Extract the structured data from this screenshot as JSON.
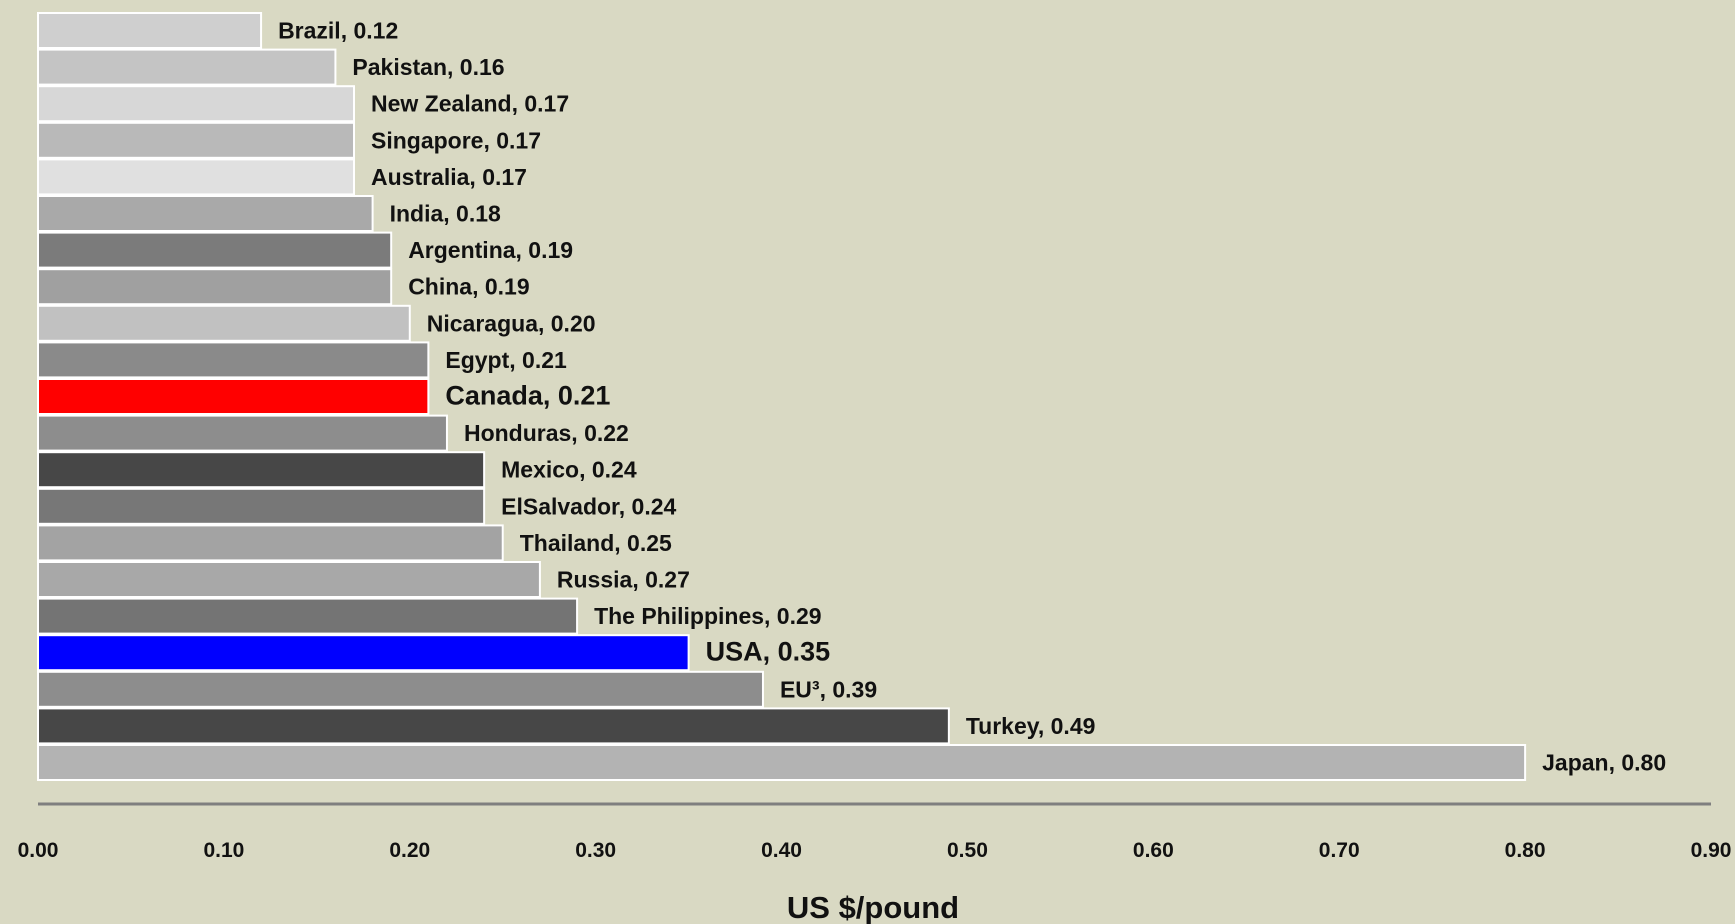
{
  "chart_data": {
    "type": "bar",
    "orientation": "horizontal",
    "title": "",
    "xlabel": "US $/pound",
    "ylabel": "",
    "xlim": [
      0,
      0.9
    ],
    "xticks": [
      "0.00",
      "0.10",
      "0.20",
      "0.30",
      "0.40",
      "0.50",
      "0.60",
      "0.70",
      "0.80",
      "0.90"
    ],
    "grid": false,
    "legend": "none",
    "bars": [
      {
        "category": "Brazil",
        "value": 0.12,
        "label": "Brazil, 0.12",
        "color": "#cfcfcf",
        "highlight": false
      },
      {
        "category": "Pakistan",
        "value": 0.16,
        "label": "Pakistan, 0.16",
        "color": "#c4c4c4",
        "highlight": false
      },
      {
        "category": "New Zealand",
        "value": 0.17,
        "label": "New Zealand, 0.17",
        "color": "#d7d7d7",
        "highlight": false
      },
      {
        "category": "Singapore",
        "value": 0.17,
        "label": "Singapore, 0.17",
        "color": "#b9b9b9",
        "highlight": false
      },
      {
        "category": "Australia",
        "value": 0.17,
        "label": "Australia, 0.17",
        "color": "#e0e0e0",
        "highlight": false
      },
      {
        "category": "India",
        "value": 0.18,
        "label": "India, 0.18",
        "color": "#a9a9a9",
        "highlight": false
      },
      {
        "category": "Argentina",
        "value": 0.19,
        "label": "Argentina, 0.19",
        "color": "#7b7b7b",
        "highlight": false
      },
      {
        "category": "China",
        "value": 0.19,
        "label": "China, 0.19",
        "color": "#a0a0a0",
        "highlight": false
      },
      {
        "category": "Nicaragua",
        "value": 0.2,
        "label": "Nicaragua, 0.20",
        "color": "#c1c1c1",
        "highlight": false
      },
      {
        "category": "Egypt",
        "value": 0.21,
        "label": "Egypt, 0.21",
        "color": "#8a8a8a",
        "highlight": false
      },
      {
        "category": "Canada",
        "value": 0.21,
        "label": "Canada, 0.21",
        "color": "#ff0000",
        "highlight": true
      },
      {
        "category": "Honduras",
        "value": 0.22,
        "label": "Honduras, 0.22",
        "color": "#8d8d8d",
        "highlight": false
      },
      {
        "category": "Mexico",
        "value": 0.24,
        "label": "Mexico, 0.24",
        "color": "#474747",
        "highlight": false
      },
      {
        "category": "ElSalvador",
        "value": 0.24,
        "label": "ElSalvador, 0.24",
        "color": "#777777",
        "highlight": false
      },
      {
        "category": "Thailand",
        "value": 0.25,
        "label": "Thailand, 0.25",
        "color": "#a3a3a3",
        "highlight": false
      },
      {
        "category": "Russia",
        "value": 0.27,
        "label": "Russia, 0.27",
        "color": "#a8a8a8",
        "highlight": false
      },
      {
        "category": "The Philippines",
        "value": 0.29,
        "label": "The Philippines, 0.29",
        "color": "#747474",
        "highlight": false
      },
      {
        "category": "USA",
        "value": 0.35,
        "label": "USA, 0.35",
        "color": "#0000ff",
        "highlight": true
      },
      {
        "category": "EU³",
        "value": 0.39,
        "label": "EU³, 0.39",
        "color": "#8d8d8d",
        "highlight": false
      },
      {
        "category": "Turkey",
        "value": 0.49,
        "label": "Turkey, 0.49",
        "color": "#474747",
        "highlight": false
      },
      {
        "category": "Japan",
        "value": 0.8,
        "label": "Japan, 0.80",
        "color": "#b3b3b3",
        "highlight": false
      }
    ],
    "colors": {
      "background": "#d9d9c3",
      "axis_line": "#7f7f7f",
      "bar_outline": "#ffffff",
      "text": "#111111"
    }
  }
}
